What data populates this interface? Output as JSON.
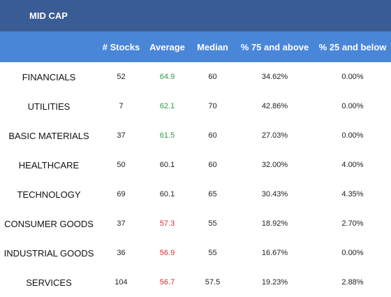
{
  "title": "MID CAP",
  "headers": [
    "",
    "# Stocks",
    "Average",
    "Median",
    "% 75 and above",
    "% 25 and below"
  ],
  "colors": {
    "title_bg": "#3a5c94",
    "header_bg": "#4a86d8",
    "positive": "#2e9a4a",
    "negative": "#e02a2a"
  },
  "rows": [
    {
      "sector": "FINANCIALS",
      "stocks": "52",
      "average": "64.9",
      "avg_tone": "pos",
      "median": "60",
      "p75": "34.62%",
      "p25": "0.00%"
    },
    {
      "sector": "UTILITIES",
      "stocks": "7",
      "average": "62.1",
      "avg_tone": "pos",
      "median": "70",
      "p75": "42.86%",
      "p25": "0.00%"
    },
    {
      "sector": "BASIC MATERIALS",
      "stocks": "37",
      "average": "61.5",
      "avg_tone": "pos",
      "median": "60",
      "p75": "27.03%",
      "p25": "0.00%"
    },
    {
      "sector": "HEALTHCARE",
      "stocks": "50",
      "average": "60.1",
      "avg_tone": "neutral",
      "median": "60",
      "p75": "32.00%",
      "p25": "4.00%"
    },
    {
      "sector": "TECHNOLOGY",
      "stocks": "69",
      "average": "60.1",
      "avg_tone": "neutral",
      "median": "65",
      "p75": "30.43%",
      "p25": "4.35%"
    },
    {
      "sector": "CONSUMER GOODS",
      "stocks": "37",
      "average": "57.3",
      "avg_tone": "neg",
      "median": "55",
      "p75": "18.92%",
      "p25": "2.70%"
    },
    {
      "sector": "INDUSTRIAL GOODS",
      "stocks": "36",
      "average": "56.9",
      "avg_tone": "neg",
      "median": "55",
      "p75": "16.67%",
      "p25": "0.00%"
    },
    {
      "sector": "SERVICES",
      "stocks": "104",
      "average": "56.7",
      "avg_tone": "neg",
      "median": "57.5",
      "p75": "19.23%",
      "p25": "2.88%"
    }
  ]
}
